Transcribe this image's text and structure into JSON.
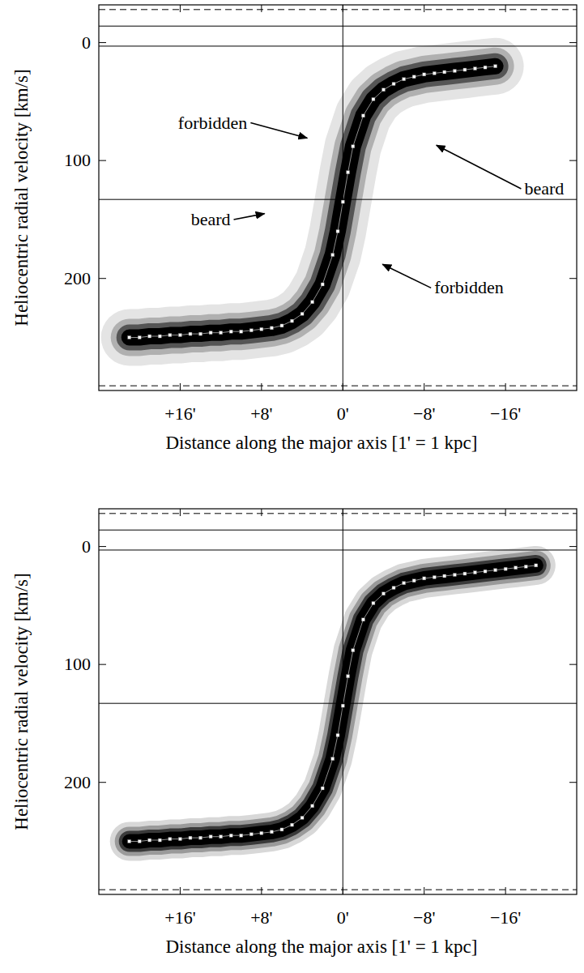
{
  "chart_data": [
    {
      "type": "line",
      "x_label": "Distance along the major axis [1' = 1 kpc]",
      "y_label": "Heliocentric radial velocity [km/s]",
      "xlim": [
        24,
        -23
      ],
      "ylim": [
        295,
        -32
      ],
      "xticks": [
        {
          "value": 16,
          "label": "+16'"
        },
        {
          "value": 8,
          "label": "+8'"
        },
        {
          "value": 0,
          "label": "0'"
        },
        {
          "value": -8,
          "label": "−8'"
        },
        {
          "value": -16,
          "label": "−16'"
        }
      ],
      "yticks": [
        0,
        100,
        200
      ],
      "x": [
        21,
        20,
        19,
        18,
        17,
        16,
        15,
        14,
        13,
        12,
        11,
        10,
        9,
        8,
        7,
        6,
        5,
        4,
        3,
        2,
        1,
        0.5,
        0,
        -0.5,
        -1,
        -2,
        -3,
        -4,
        -5,
        -6,
        -7,
        -8,
        -9,
        -10,
        -11,
        -12,
        -13,
        -14,
        -15
      ],
      "series": [
        {
          "color": "#ffffff",
          "marker": "square",
          "values": [
            250,
            250,
            249,
            249,
            248,
            248,
            247,
            247,
            246,
            246,
            245,
            245,
            244,
            243,
            242,
            240,
            236,
            230,
            220,
            205,
            180,
            160,
            135,
            110,
            88,
            62,
            48,
            40,
            35,
            31,
            29,
            27,
            26,
            25,
            24,
            23,
            22,
            21,
            20
          ]
        }
      ],
      "reference_lines": {
        "y": [
          -14,
          3,
          133
        ],
        "y_dashed": [
          -28,
          291
        ],
        "x": [
          0
        ]
      },
      "annotations": [
        {
          "text": "forbidden",
          "x": 12.8,
          "y": 68,
          "arrow_x": 3.5,
          "arrow_y": 81
        },
        {
          "text": "beard",
          "x": 13,
          "y": 150,
          "arrow_x": 7.7,
          "arrow_y": 145
        },
        {
          "text": "beard",
          "x": -19.8,
          "y": 124,
          "arrow_x": -9.2,
          "arrow_y": 87
        },
        {
          "text": "forbidden",
          "x": -12.4,
          "y": 208,
          "arrow_x": -3.9,
          "arrow_y": 188
        }
      ]
    },
    {
      "type": "line",
      "x_label": "Distance along the major axis [1' = 1 kpc]",
      "y_label": "Heliocentric radial velocity [km/s]",
      "xlim": [
        24,
        -23
      ],
      "ylim": [
        295,
        -32
      ],
      "xticks": [
        {
          "value": 16,
          "label": "+16'"
        },
        {
          "value": 8,
          "label": "+8'"
        },
        {
          "value": 0,
          "label": "0'"
        },
        {
          "value": -8,
          "label": "−8'"
        },
        {
          "value": -16,
          "label": "−16'"
        }
      ],
      "yticks": [
        0,
        100,
        200
      ],
      "x": [
        21,
        20,
        19,
        18,
        17,
        16,
        15,
        14,
        13,
        12,
        11,
        10,
        9,
        8,
        7,
        6,
        5,
        4,
        3,
        2,
        1,
        0.5,
        0,
        -0.5,
        -1,
        -2,
        -3,
        -4,
        -5,
        -6,
        -7,
        -8,
        -9,
        -10,
        -11,
        -12,
        -13,
        -14,
        -15,
        -16,
        -17,
        -18,
        -19
      ],
      "series": [
        {
          "color": "#ffffff",
          "marker": "square",
          "values": [
            250,
            250,
            249,
            249,
            248,
            248,
            247,
            247,
            246,
            246,
            245,
            245,
            244,
            243,
            242,
            240,
            236,
            230,
            220,
            205,
            180,
            160,
            135,
            110,
            88,
            62,
            48,
            40,
            35,
            31,
            29,
            27,
            26,
            25,
            24,
            23,
            22,
            21,
            20,
            19,
            18,
            17,
            16
          ]
        }
      ],
      "reference_lines": {
        "y": [
          -14,
          3,
          133
        ],
        "y_dashed": [
          -28,
          291
        ],
        "x": [
          0
        ]
      }
    }
  ]
}
